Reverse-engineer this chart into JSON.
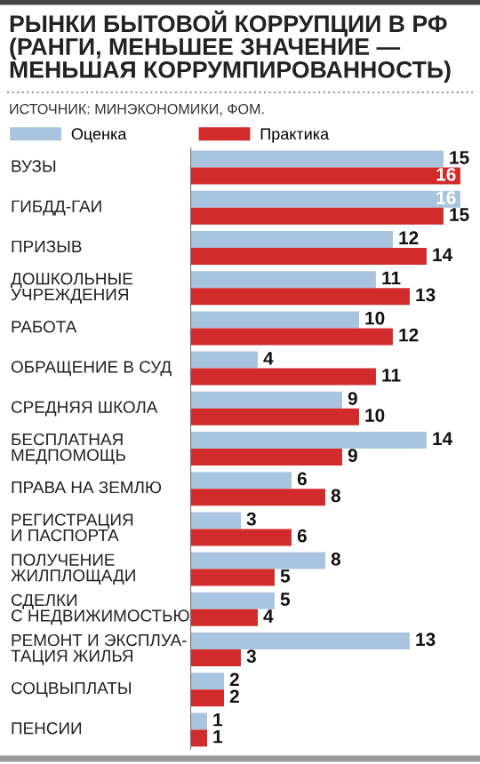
{
  "chart_data": {
    "type": "bar",
    "orientation": "horizontal",
    "title": "РЫНКИ БЫТОВОЙ КОРРУПЦИИ В РФ\n(РАНГИ, МЕНЬШЕЕ ЗНАЧЕНИЕ —\nМЕНЬШАЯ КОРРУМПИРОВАННОСТЬ)",
    "annotations": [
      "ИСТОЧНИК: МИНЭКОНОМИКИ, ФОМ."
    ],
    "categories": [
      "ВУЗЫ",
      "ГИБДД-ГАИ",
      "ПРИЗЫВ",
      "ДОШКОЛЬНЫЕ\nУЧРЕЖДЕНИЯ",
      "РАБОТА",
      "ОБРАЩЕНИЕ В СУД",
      "СРЕДНЯЯ ШКОЛА",
      "БЕСПЛАТНАЯ\nМЕДПОМОЩЬ",
      "ПРАВА НА ЗЕМЛЮ",
      "РЕГИСТРАЦИЯ\nИ ПАСПОРТА",
      "ПОЛУЧЕНИЕ\nЖИЛПЛОЩАДИ",
      "СДЕЛКИ\nС НЕДВИЖИМОСТЬЮ",
      "РЕМОНТ И ЭКСПЛУА-\nТАЦИЯ ЖИЛЬЯ",
      "СОЦВЫПЛАТЫ",
      "ПЕНСИИ"
    ],
    "series": [
      {
        "name": "Оценка",
        "color": "#a9c4de",
        "values": [
          15,
          16,
          12,
          11,
          10,
          4,
          9,
          14,
          6,
          3,
          8,
          5,
          13,
          2,
          1
        ]
      },
      {
        "name": "Практика",
        "color": "#d12b2b",
        "values": [
          16,
          15,
          14,
          13,
          12,
          11,
          10,
          9,
          8,
          6,
          5,
          4,
          3,
          2,
          1
        ]
      }
    ],
    "data_labels": true,
    "legend": "top"
  }
}
